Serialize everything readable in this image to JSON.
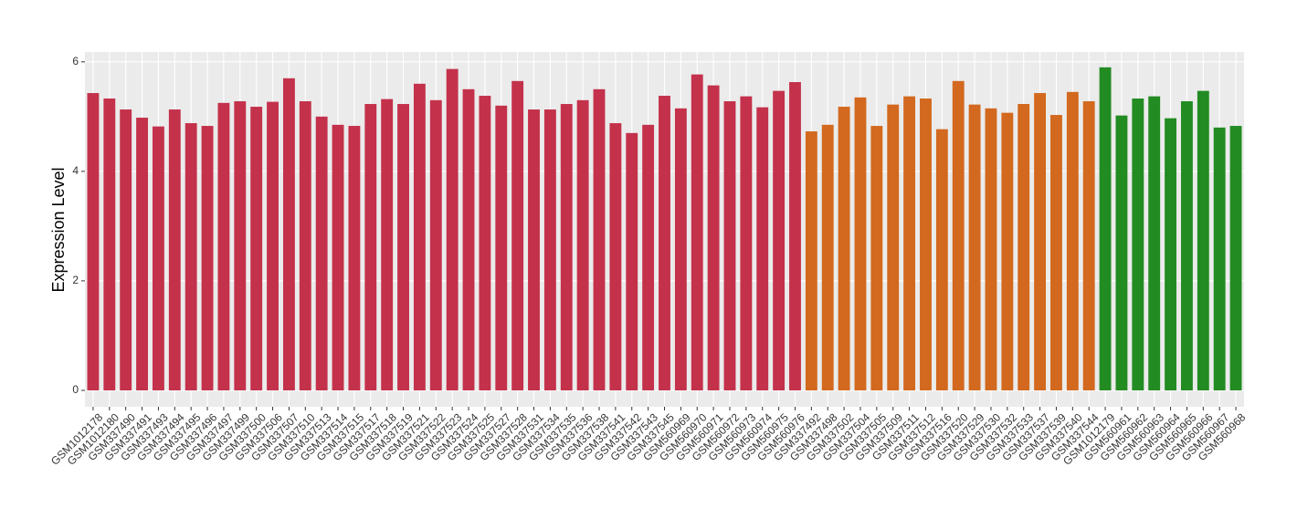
{
  "chart_data": {
    "type": "bar",
    "y_label": "Expression Level",
    "categories": [
      "GSM1012178",
      "GSM1012180",
      "GSM337490",
      "GSM337491",
      "GSM337493",
      "GSM337494",
      "GSM337495",
      "GSM337496",
      "GSM337497",
      "GSM337499",
      "GSM337500",
      "GSM337506",
      "GSM337507",
      "GSM337510",
      "GSM337513",
      "GSM337514",
      "GSM337515",
      "GSM337517",
      "GSM337518",
      "GSM337519",
      "GSM337521",
      "GSM337522",
      "GSM337523",
      "GSM337524",
      "GSM337525",
      "GSM337527",
      "GSM337528",
      "GSM337531",
      "GSM337534",
      "GSM337535",
      "GSM337536",
      "GSM337538",
      "GSM337541",
      "GSM337542",
      "GSM337543",
      "GSM337545",
      "GSM560969",
      "GSM560970",
      "GSM560971",
      "GSM560972",
      "GSM560973",
      "GSM560974",
      "GSM560975",
      "GSM560976",
      "GSM337492",
      "GSM337498",
      "GSM337502",
      "GSM337504",
      "GSM337505",
      "GSM337509",
      "GSM337511",
      "GSM337512",
      "GSM337516",
      "GSM337520",
      "GSM337529",
      "GSM337530",
      "GSM337532",
      "GSM337533",
      "GSM337537",
      "GSM337539",
      "GSM337540",
      "GSM337544",
      "GSM1012179",
      "GSM560961",
      "GSM560962",
      "GSM560963",
      "GSM560964",
      "GSM560965",
      "GSM560966",
      "GSM560967",
      "GSM560968"
    ],
    "values": [
      5.43,
      5.33,
      5.13,
      4.98,
      4.82,
      5.13,
      4.88,
      4.83,
      5.25,
      5.28,
      5.18,
      5.27,
      5.7,
      5.28,
      5.0,
      4.85,
      4.83,
      5.23,
      5.32,
      5.23,
      5.6,
      5.3,
      5.87,
      5.5,
      5.38,
      5.2,
      5.65,
      5.13,
      5.13,
      5.23,
      5.3,
      5.5,
      4.88,
      4.7,
      4.85,
      5.38,
      5.15,
      5.77,
      5.57,
      5.28,
      5.37,
      5.17,
      5.47,
      5.63,
      4.73,
      4.85,
      5.18,
      5.35,
      4.83,
      5.22,
      5.37,
      5.33,
      4.77,
      5.65,
      5.22,
      5.15,
      5.07,
      5.23,
      5.43,
      5.03,
      5.45,
      5.28,
      5.9,
      5.02,
      5.33,
      5.37,
      4.97,
      5.28,
      5.47,
      4.8,
      4.83
    ],
    "colors": [
      "#c4314b",
      "#c4314b",
      "#c4314b",
      "#c4314b",
      "#c4314b",
      "#c4314b",
      "#c4314b",
      "#c4314b",
      "#c4314b",
      "#c4314b",
      "#c4314b",
      "#c4314b",
      "#c4314b",
      "#c4314b",
      "#c4314b",
      "#c4314b",
      "#c4314b",
      "#c4314b",
      "#c4314b",
      "#c4314b",
      "#c4314b",
      "#c4314b",
      "#c4314b",
      "#c4314b",
      "#c4314b",
      "#c4314b",
      "#c4314b",
      "#c4314b",
      "#c4314b",
      "#c4314b",
      "#c4314b",
      "#c4314b",
      "#c4314b",
      "#c4314b",
      "#c4314b",
      "#c4314b",
      "#c4314b",
      "#c4314b",
      "#c4314b",
      "#c4314b",
      "#c4314b",
      "#c4314b",
      "#c4314b",
      "#c4314b",
      "#d2691e",
      "#d2691e",
      "#d2691e",
      "#d2691e",
      "#d2691e",
      "#d2691e",
      "#d2691e",
      "#d2691e",
      "#d2691e",
      "#d2691e",
      "#d2691e",
      "#d2691e",
      "#d2691e",
      "#d2691e",
      "#d2691e",
      "#d2691e",
      "#d2691e",
      "#d2691e",
      "#228b22",
      "#228b22",
      "#228b22",
      "#228b22",
      "#228b22",
      "#228b22",
      "#228b22",
      "#228b22",
      "#228b22"
    ],
    "ylim": [
      -0.3,
      6.18
    ],
    "yticks": [
      0,
      2,
      4,
      6
    ],
    "grid": true
  }
}
